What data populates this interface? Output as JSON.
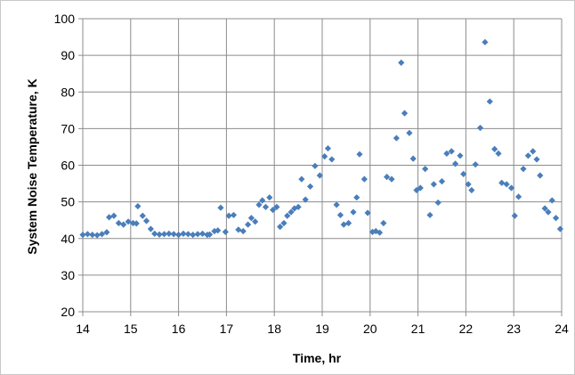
{
  "chart_data": {
    "type": "scatter",
    "title": "",
    "xlabel": "Time, hr",
    "ylabel": "System Noise Temperature, K",
    "xlim": [
      14,
      24
    ],
    "ylim": [
      20,
      100
    ],
    "x_ticks": [
      "14",
      "15",
      "16",
      "17",
      "18",
      "19",
      "20",
      "21",
      "22",
      "23",
      "24"
    ],
    "y_ticks": [
      "20",
      "30",
      "40",
      "50",
      "60",
      "70",
      "80",
      "90",
      "100"
    ],
    "grid": true,
    "legend": "none",
    "marker": "diamond",
    "marker_color": "#4a7ebb",
    "series": [
      {
        "points": [
          [
            14.0,
            41.0
          ],
          [
            14.1,
            41.2
          ],
          [
            14.2,
            41.0
          ],
          [
            14.3,
            40.9
          ],
          [
            14.4,
            41.2
          ],
          [
            14.5,
            41.7
          ],
          [
            14.55,
            45.8
          ],
          [
            14.65,
            46.2
          ],
          [
            14.75,
            44.2
          ],
          [
            14.85,
            43.8
          ],
          [
            14.95,
            44.6
          ],
          [
            15.05,
            44.2
          ],
          [
            15.12,
            44.1
          ],
          [
            15.15,
            48.8
          ],
          [
            15.25,
            46.2
          ],
          [
            15.33,
            44.8
          ],
          [
            15.42,
            42.6
          ],
          [
            15.5,
            41.3
          ],
          [
            15.6,
            41.1
          ],
          [
            15.7,
            41.2
          ],
          [
            15.8,
            41.3
          ],
          [
            15.9,
            41.2
          ],
          [
            16.0,
            41.0
          ],
          [
            16.1,
            41.3
          ],
          [
            16.2,
            41.2
          ],
          [
            16.3,
            41.0
          ],
          [
            16.4,
            41.2
          ],
          [
            16.5,
            41.3
          ],
          [
            16.6,
            41.0
          ],
          [
            16.65,
            41.1
          ],
          [
            16.75,
            42.0
          ],
          [
            16.82,
            42.2
          ],
          [
            16.88,
            48.4
          ],
          [
            16.98,
            41.8
          ],
          [
            17.05,
            46.2
          ],
          [
            17.15,
            46.4
          ],
          [
            17.25,
            42.4
          ],
          [
            17.35,
            42.0
          ],
          [
            17.45,
            43.8
          ],
          [
            17.52,
            45.6
          ],
          [
            17.6,
            44.6
          ],
          [
            17.68,
            49.2
          ],
          [
            17.75,
            50.4
          ],
          [
            17.82,
            48.6
          ],
          [
            17.9,
            51.2
          ],
          [
            17.97,
            47.8
          ],
          [
            18.05,
            48.6
          ],
          [
            18.12,
            43.2
          ],
          [
            18.2,
            44.2
          ],
          [
            18.27,
            46.2
          ],
          [
            18.35,
            47.2
          ],
          [
            18.42,
            48.2
          ],
          [
            18.5,
            48.6
          ],
          [
            18.57,
            56.2
          ],
          [
            18.65,
            50.6
          ],
          [
            18.75,
            54.2
          ],
          [
            18.85,
            59.8
          ],
          [
            18.95,
            57.2
          ],
          [
            19.05,
            62.4
          ],
          [
            19.12,
            64.6
          ],
          [
            19.2,
            61.6
          ],
          [
            19.3,
            49.2
          ],
          [
            19.38,
            46.4
          ],
          [
            19.45,
            43.8
          ],
          [
            19.55,
            44.2
          ],
          [
            19.65,
            47.2
          ],
          [
            19.72,
            51.2
          ],
          [
            19.78,
            63.0
          ],
          [
            19.88,
            56.2
          ],
          [
            19.95,
            47.0
          ],
          [
            20.05,
            41.8
          ],
          [
            20.12,
            42.0
          ],
          [
            20.2,
            41.6
          ],
          [
            20.28,
            44.2
          ],
          [
            20.35,
            56.8
          ],
          [
            20.45,
            56.2
          ],
          [
            20.55,
            67.4
          ],
          [
            20.65,
            88.0
          ],
          [
            20.72,
            74.2
          ],
          [
            20.82,
            68.8
          ],
          [
            20.9,
            61.8
          ],
          [
            20.97,
            53.2
          ],
          [
            21.05,
            53.8
          ],
          [
            21.15,
            59.0
          ],
          [
            21.25,
            46.4
          ],
          [
            21.33,
            54.8
          ],
          [
            21.42,
            49.8
          ],
          [
            21.5,
            55.6
          ],
          [
            21.6,
            63.2
          ],
          [
            21.7,
            63.8
          ],
          [
            21.78,
            60.4
          ],
          [
            21.88,
            62.6
          ],
          [
            21.95,
            57.6
          ],
          [
            22.05,
            54.8
          ],
          [
            22.12,
            53.2
          ],
          [
            22.2,
            60.2
          ],
          [
            22.3,
            70.2
          ],
          [
            22.4,
            93.6
          ],
          [
            22.5,
            77.4
          ],
          [
            22.6,
            64.4
          ],
          [
            22.68,
            63.2
          ],
          [
            22.75,
            55.2
          ],
          [
            22.85,
            54.8
          ],
          [
            22.95,
            53.8
          ],
          [
            23.02,
            46.2
          ],
          [
            23.1,
            51.4
          ],
          [
            23.2,
            59.0
          ],
          [
            23.3,
            62.6
          ],
          [
            23.4,
            63.8
          ],
          [
            23.48,
            61.6
          ],
          [
            23.55,
            57.2
          ],
          [
            23.65,
            48.2
          ],
          [
            23.72,
            47.2
          ],
          [
            23.8,
            50.4
          ],
          [
            23.88,
            45.6
          ],
          [
            23.97,
            42.6
          ]
        ]
      }
    ]
  }
}
